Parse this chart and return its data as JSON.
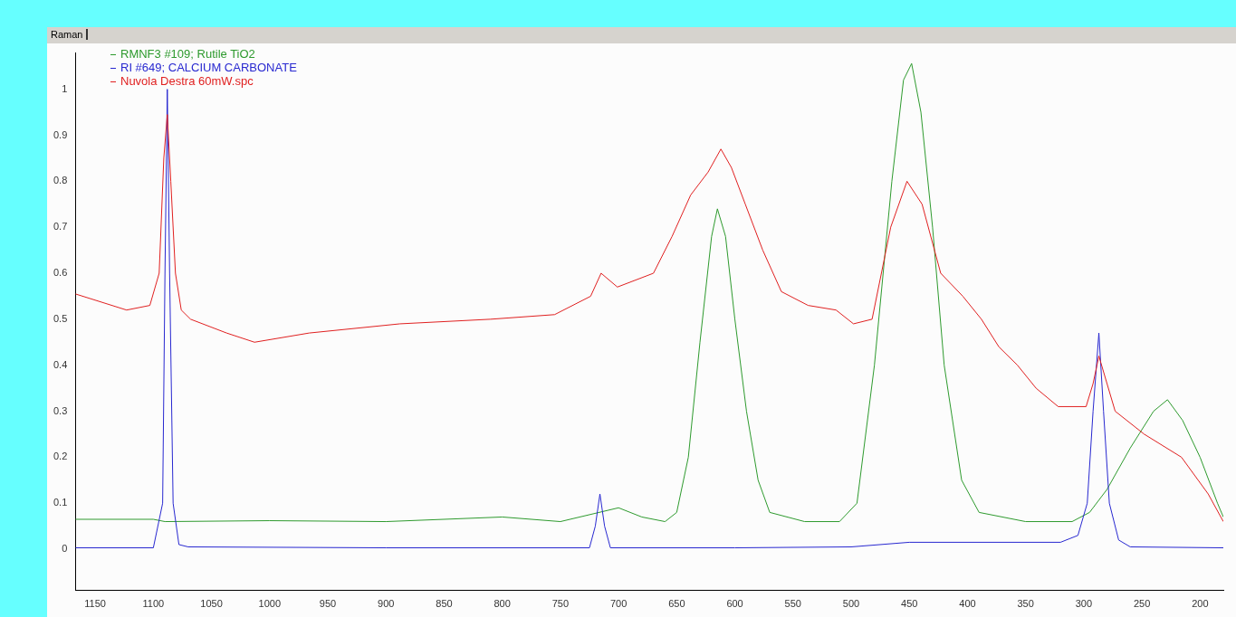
{
  "chart_data": {
    "type": "line",
    "annotations": [
      "Raman"
    ],
    "xlim": [
      1167,
      180
    ],
    "xticks": [
      1150,
      1100,
      1050,
      1000,
      950,
      900,
      850,
      800,
      750,
      700,
      650,
      600,
      550,
      500,
      450,
      400,
      350,
      300,
      250,
      200
    ],
    "ylim": [
      -0.09,
      1.08
    ],
    "yticks": [
      0,
      0.1,
      0.2,
      0.3,
      0.4,
      0.5,
      0.6,
      0.7,
      0.8,
      0.9,
      1
    ],
    "grid": false,
    "legend": "top left",
    "marker": "none",
    "line_style": "solid",
    "series": [
      {
        "name": "RMNF3 #109; Rutile TiO2",
        "color": "#2e9a2e",
        "x": [
          1167,
          1100,
          1090,
          1000,
          900,
          800,
          750,
          700,
          680,
          660,
          650,
          640,
          630,
          620,
          615,
          608,
          600,
          590,
          580,
          570,
          540,
          510,
          495,
          480,
          465,
          455,
          448,
          440,
          430,
          420,
          405,
          390,
          350,
          310,
          295,
          280,
          260,
          240,
          228,
          215,
          200,
          185,
          180
        ],
        "values": [
          0.065,
          0.065,
          0.06,
          0.062,
          0.06,
          0.07,
          0.06,
          0.09,
          0.07,
          0.06,
          0.08,
          0.2,
          0.45,
          0.68,
          0.74,
          0.68,
          0.5,
          0.3,
          0.15,
          0.08,
          0.06,
          0.06,
          0.1,
          0.4,
          0.8,
          1.02,
          1.056,
          0.95,
          0.7,
          0.4,
          0.15,
          0.08,
          0.06,
          0.06,
          0.08,
          0.13,
          0.22,
          0.3,
          0.325,
          0.28,
          0.2,
          0.1,
          0.07
        ]
      },
      {
        "name": "RI #649; CALCIUM CARBONATE",
        "color": "#2828d0",
        "x": [
          1167,
          1100,
          1092,
          1090,
          1088,
          1086,
          1083,
          1078,
          1070,
          900,
          725,
          720,
          716,
          712,
          707,
          600,
          500,
          450,
          320,
          305,
          297,
          292,
          287,
          283,
          278,
          270,
          260,
          180
        ],
        "values": [
          0.003,
          0.003,
          0.1,
          0.6,
          1.0,
          0.6,
          0.1,
          0.01,
          0.005,
          0.003,
          0.003,
          0.05,
          0.12,
          0.05,
          0.003,
          0.003,
          0.005,
          0.015,
          0.015,
          0.03,
          0.1,
          0.3,
          0.47,
          0.3,
          0.1,
          0.02,
          0.005,
          0.003
        ]
      },
      {
        "name": "Nuvola Destra 60mW.spc",
        "color": "#e02020",
        "x": [
          1167,
          1123,
          1103,
          1095,
          1091,
          1088,
          1085,
          1081,
          1076,
          1068,
          1037,
          1013,
          966,
          888,
          810,
          755,
          724,
          715,
          701,
          670,
          654,
          638,
          623,
          612,
          603,
          591,
          576,
          560,
          537,
          513,
          498,
          482,
          466,
          452,
          439,
          423,
          404,
          388,
          373,
          357,
          341,
          322,
          298,
          292,
          287,
          280,
          273,
          248,
          216,
          193,
          180
        ],
        "values": [
          0.555,
          0.52,
          0.53,
          0.6,
          0.85,
          0.945,
          0.8,
          0.6,
          0.52,
          0.5,
          0.47,
          0.45,
          0.47,
          0.49,
          0.5,
          0.51,
          0.55,
          0.6,
          0.57,
          0.6,
          0.68,
          0.77,
          0.82,
          0.87,
          0.83,
          0.75,
          0.65,
          0.56,
          0.53,
          0.52,
          0.49,
          0.5,
          0.7,
          0.8,
          0.75,
          0.6,
          0.55,
          0.5,
          0.44,
          0.4,
          0.35,
          0.31,
          0.31,
          0.36,
          0.42,
          0.36,
          0.3,
          0.25,
          0.2,
          0.12,
          0.06
        ]
      }
    ]
  }
}
